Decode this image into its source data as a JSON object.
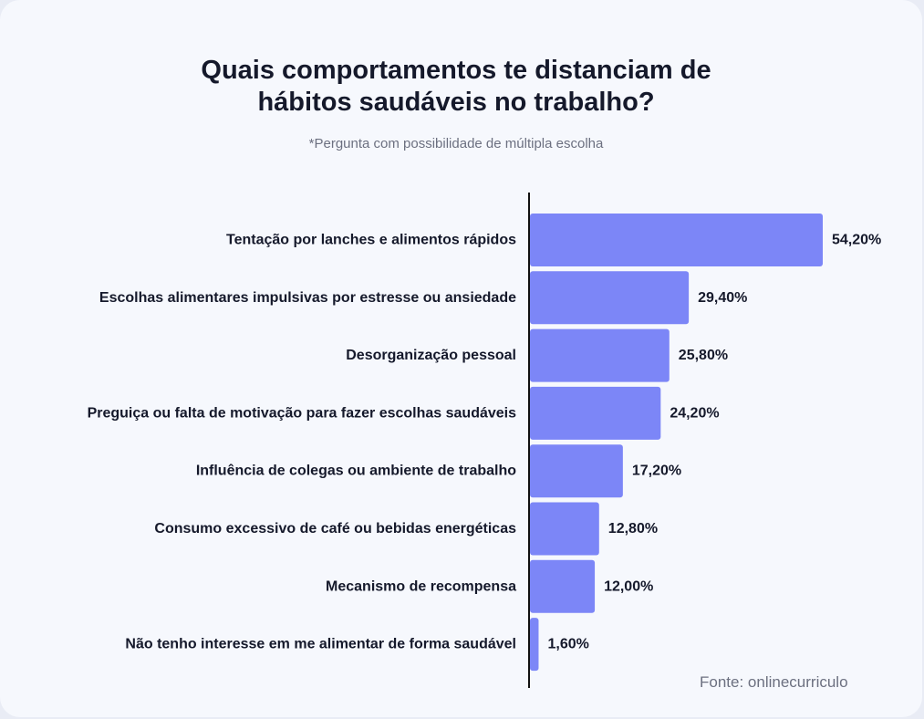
{
  "title": "Quais comportamentos te distanciam de\nhábitos saudáveis no trabalho?",
  "subtitle": "*Pergunta com possibilidade de múltipla escolha",
  "source": "Fonte: onlinecurriculo",
  "colors": {
    "bar": "#7c86f7",
    "axis": "#111111",
    "label": "#15192b",
    "card": "#f6f8fd"
  },
  "chart_data": {
    "type": "bar",
    "orientation": "horizontal",
    "title": "Quais comportamentos te distanciam de hábitos saudáveis no trabalho?",
    "subtitle": "*Pergunta com possibilidade de múltipla escolha",
    "categories": [
      "Tentação por lanches e alimentos rápidos",
      "Escolhas alimentares impulsivas por estresse ou ansiedade",
      "Desorganização pessoal",
      "Preguiça ou falta de motivação para fazer escolhas saudáveis",
      "Influência de colegas ou ambiente de trabalho",
      "Consumo excessivo de café ou bebidas energéticas",
      "Mecanismo de recompensa",
      "Não tenho interesse em me alimentar de forma saudável"
    ],
    "values": [
      54.2,
      29.4,
      25.8,
      24.2,
      17.2,
      12.8,
      12.0,
      1.6
    ],
    "value_labels": [
      "54,20%",
      "29,40%",
      "25,80%",
      "24,20%",
      "17,20%",
      "12,80%",
      "12,00%",
      "1,60%"
    ],
    "unit": "%",
    "xlim": [
      0,
      54.2
    ],
    "grid": false,
    "legend": "none"
  }
}
